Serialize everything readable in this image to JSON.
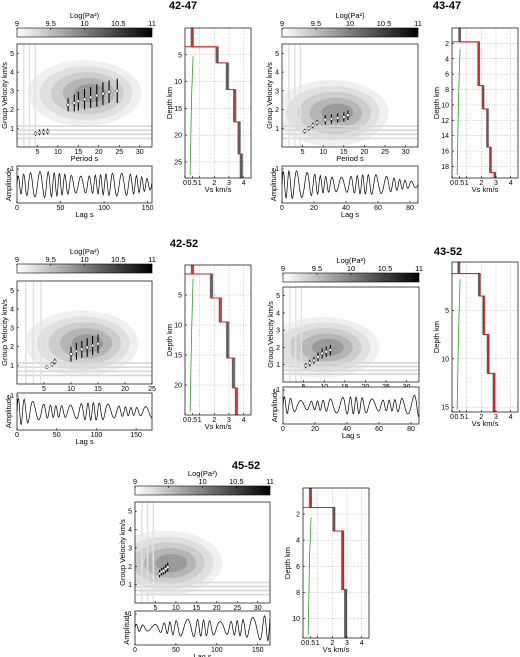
{
  "colorbar": {
    "label": "Log(Pa²)",
    "ticks": [
      "9",
      "9.5",
      "10",
      "10.5",
      "11"
    ],
    "min": 9,
    "max": 11
  },
  "labels": {
    "group_velocity": "Group Velocity km/s",
    "period": "Period s",
    "amplitude": "Amplitude",
    "lag": "Lag s",
    "depth": "Depth km",
    "vs": "Vs km/s"
  },
  "colors": {
    "velocity_model": "#e02020",
    "model_ensemble": "#505050",
    "reference_model": "#2aa02a",
    "dispersion_points": "#ffffff",
    "error_bars": "#000000"
  },
  "chart_data": [
    {
      "title": "42-47",
      "type": "heatmap",
      "ftan": {
        "xlim": [
          0,
          33
        ],
        "ylim": [
          0,
          5.5
        ],
        "xticks": [
          "5",
          "10",
          "15",
          "20",
          "25",
          "30"
        ],
        "yticks": [
          "1",
          "2",
          "3",
          "4",
          "5"
        ],
        "dispersion": {
          "period": [
            4.5,
            5.5,
            6.5,
            7.5,
            12.5,
            14,
            15,
            16.5,
            18,
            19.5,
            21,
            22.5,
            24.5
          ],
          "velocity": [
            0.72,
            0.78,
            0.8,
            0.83,
            2.25,
            2.35,
            2.45,
            2.55,
            2.65,
            2.75,
            2.85,
            2.95,
            3.0
          ],
          "error": [
            0.12,
            0.15,
            0.15,
            0.15,
            0.35,
            0.45,
            0.5,
            0.55,
            0.55,
            0.6,
            0.6,
            0.6,
            0.65
          ]
        }
      },
      "waveform": {
        "xlim": [
          0,
          155
        ],
        "xticks": [
          "0",
          "50",
          "100",
          "150"
        ]
      },
      "model": {
        "depth_lim": [
          0,
          28
        ],
        "vs_lim": [
          0,
          4.5
        ],
        "depth_ticks": [
          "5",
          "10",
          "15",
          "20",
          "25"
        ],
        "vs_ticks": [
          "0",
          "0.5",
          "1",
          "2",
          "3",
          "4"
        ],
        "vs": [
          0.5,
          2.2,
          2.9,
          3.4,
          3.7,
          3.85
        ],
        "layer_bottom_depth": [
          3.5,
          6.5,
          11.5,
          17.5,
          23.5,
          28
        ]
      }
    },
    {
      "title": "43-47",
      "type": "heatmap",
      "ftan": {
        "xlim": [
          0,
          33
        ],
        "ylim": [
          0,
          5.5
        ],
        "xticks": [
          "5",
          "10",
          "15",
          "20",
          "25",
          "30"
        ],
        "yticks": [
          "1",
          "2",
          "3",
          "4",
          "5"
        ],
        "dispersion": {
          "period": [
            5.5,
            6.5,
            7.5,
            8.5,
            10.5,
            12,
            13.5,
            15,
            16
          ],
          "velocity": [
            0.85,
            1.0,
            1.15,
            1.3,
            1.45,
            1.5,
            1.55,
            1.6,
            1.7
          ],
          "error": [
            0.12,
            0.12,
            0.15,
            0.15,
            0.25,
            0.25,
            0.25,
            0.25,
            0.25
          ]
        }
      },
      "waveform": {
        "xlim": [
          0,
          85
        ],
        "xticks": [
          "0",
          "20",
          "40",
          "60",
          "80"
        ]
      },
      "model": {
        "depth_lim": [
          0,
          19.5
        ],
        "vs_lim": [
          0,
          4.5
        ],
        "depth_ticks": [
          "2",
          "4",
          "6",
          "8",
          "10",
          "12",
          "14",
          "16",
          "18"
        ],
        "vs_ticks": [
          "0",
          "0.5",
          "1",
          "2",
          "3",
          "4"
        ],
        "vs": [
          0.5,
          1.8,
          2.1,
          2.4,
          2.6,
          2.9
        ],
        "layer_bottom_depth": [
          1.8,
          7.5,
          10.5,
          15.5,
          18.8,
          19.5
        ]
      }
    },
    {
      "title": "42-52",
      "type": "heatmap",
      "ftan": {
        "xlim": [
          0,
          25
        ],
        "ylim": [
          0,
          5.5
        ],
        "xticks": [
          "5",
          "10",
          "15",
          "20",
          "25"
        ],
        "yticks": [
          "1",
          "2",
          "3",
          "4",
          "5"
        ],
        "dispersion": {
          "period": [
            5.5,
            6.5,
            7,
            10,
            11,
            12,
            13,
            14,
            15
          ],
          "velocity": [
            0.9,
            1.05,
            1.2,
            1.6,
            1.75,
            1.85,
            1.95,
            2.05,
            2.15
          ],
          "error": [
            0.1,
            0.12,
            0.15,
            0.4,
            0.45,
            0.45,
            0.5,
            0.5,
            0.5
          ]
        }
      },
      "waveform": {
        "xlim": [
          0,
          170
        ],
        "xticks": [
          "0",
          "50",
          "100",
          "150"
        ]
      },
      "model": {
        "depth_lim": [
          0,
          25
        ],
        "vs_lim": [
          0,
          4.5
        ],
        "depth_ticks": [
          "5",
          "10",
          "15",
          "20"
        ],
        "vs_ticks": [
          "0",
          "0.5",
          "1",
          "2",
          "3",
          "4"
        ],
        "vs": [
          0.5,
          1.8,
          2.4,
          2.9,
          3.3,
          3.5
        ],
        "layer_bottom_depth": [
          1.5,
          5.5,
          9.5,
          15.5,
          20.5,
          25
        ]
      }
    },
    {
      "title": "43-52",
      "type": "heatmap",
      "ftan": {
        "xlim": [
          0,
          33
        ],
        "ylim": [
          0,
          5.5
        ],
        "xticks": [
          "5",
          "10",
          "15",
          "20",
          "25",
          "30"
        ],
        "yticks": [
          "1",
          "2",
          "3",
          "4",
          "5"
        ],
        "dispersion": {
          "period": [
            5.5,
            6.5,
            7.5,
            8.5,
            9.5,
            10.5,
            11.5
          ],
          "velocity": [
            0.95,
            1.1,
            1.25,
            1.45,
            1.65,
            1.75,
            1.85
          ],
          "error": [
            0.15,
            0.2,
            0.2,
            0.25,
            0.3,
            0.3,
            0.3
          ]
        }
      },
      "waveform": {
        "xlim": [
          0,
          85
        ],
        "xticks": [
          "0",
          "20",
          "40",
          "60",
          "80"
        ]
      },
      "model": {
        "depth_lim": [
          0,
          15.5
        ],
        "vs_lim": [
          0,
          4.5
        ],
        "depth_ticks": [
          "5",
          "10",
          "15"
        ],
        "vs_ticks": [
          "0",
          "0.5",
          "1",
          "2",
          "3",
          "4"
        ],
        "vs": [
          0.5,
          1.9,
          2.2,
          2.5,
          2.9
        ],
        "layer_bottom_depth": [
          1.2,
          3.5,
          7.5,
          11.5,
          15.5
        ]
      }
    },
    {
      "title": "45-52",
      "type": "heatmap",
      "ftan": {
        "xlim": [
          0,
          33
        ],
        "ylim": [
          0,
          5.5
        ],
        "xticks": [
          "5",
          "10",
          "15",
          "20",
          "25",
          "30"
        ],
        "yticks": [
          "1",
          "2",
          "3",
          "4",
          "5"
        ],
        "dispersion": {
          "period": [
            6,
            6.5,
            7,
            7.5,
            8
          ],
          "velocity": [
            1.6,
            1.7,
            1.75,
            1.85,
            1.95
          ],
          "error": [
            0.2,
            0.2,
            0.2,
            0.25,
            0.25
          ]
        }
      },
      "waveform": {
        "xlim": [
          0,
          165
        ],
        "xticks": [
          "0",
          "50",
          "100",
          "150"
        ]
      },
      "model": {
        "depth_lim": [
          0,
          11.5
        ],
        "vs_lim": [
          0,
          4.5
        ],
        "depth_ticks": [
          "2",
          "4",
          "6",
          "8",
          "10"
        ],
        "vs_ticks": [
          "0",
          "0.5",
          "1",
          "2",
          "3",
          "4"
        ],
        "vs": [
          0.5,
          2.1,
          2.7,
          2.9
        ],
        "layer_bottom_depth": [
          1.5,
          3.3,
          7.8,
          11.5
        ]
      }
    }
  ]
}
